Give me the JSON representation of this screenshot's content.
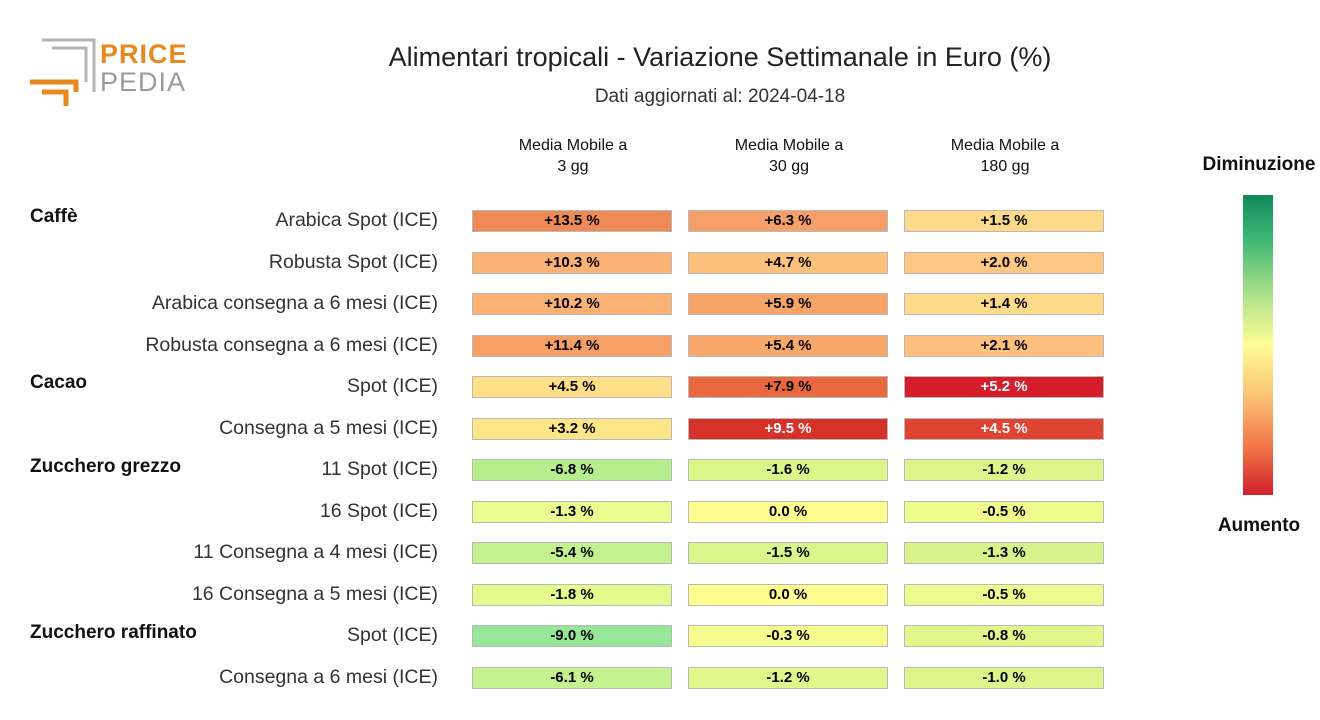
{
  "logo": {
    "line1": "PRICE",
    "line2": "PEDIA",
    "orange": "#e8891f",
    "grey": "#a5a5a5"
  },
  "title": "Alimentari tropicali - Variazione Settimanale in Euro (%)",
  "subtitle": "Dati aggiornati al: 2024-04-18",
  "columns": [
    {
      "line1": "Media Mobile a",
      "line2": "3 gg"
    },
    {
      "line1": "Media Mobile a",
      "line2": "30 gg"
    },
    {
      "line1": "Media Mobile a",
      "line2": "180 gg"
    }
  ],
  "groups": [
    "Caffè",
    "Cacao",
    "Zucchero grezzo",
    "Zucchero raffinato"
  ],
  "rows": [
    {
      "label": "Arabica Spot (ICE)",
      "values": [
        "+13.5 %",
        "+6.3 %",
        "+1.5 %"
      ]
    },
    {
      "label": "Robusta Spot (ICE)",
      "values": [
        "+10.3 %",
        "+4.7 %",
        "+2.0 %"
      ]
    },
    {
      "label": "Arabica consegna a 6 mesi (ICE)",
      "values": [
        "+10.2 %",
        "+5.9 %",
        "+1.4 %"
      ]
    },
    {
      "label": "Robusta consegna a 6 mesi (ICE)",
      "values": [
        "+11.4 %",
        "+5.4 %",
        "+2.1 %"
      ]
    },
    {
      "label": "Spot (ICE)",
      "values": [
        "+4.5 %",
        "+7.9 %",
        "+5.2 %"
      ]
    },
    {
      "label": "Consegna a 5 mesi (ICE)",
      "values": [
        "+3.2 %",
        "+9.5 %",
        "+4.5 %"
      ]
    },
    {
      "label": "11 Spot (ICE)",
      "values": [
        "-6.8 %",
        "-1.6 %",
        "-1.2 %"
      ]
    },
    {
      "label": "16 Spot (ICE)",
      "values": [
        "-1.3 %",
        "0.0 %",
        "-0.5 %"
      ]
    },
    {
      "label": "11 Consegna a 4 mesi (ICE)",
      "values": [
        "-5.4 %",
        "-1.5 %",
        "-1.3 %"
      ]
    },
    {
      "label": "16 Consegna a 5 mesi (ICE)",
      "values": [
        "-1.8 %",
        "0.0 %",
        "-0.5 %"
      ]
    },
    {
      "label": "Spot (ICE)",
      "values": [
        "-9.0 %",
        "-0.3 %",
        "-0.8 %"
      ]
    },
    {
      "label": "Consegna a 6 mesi (ICE)",
      "values": [
        "-6.1 %",
        "-1.2 %",
        "-1.0 %"
      ]
    }
  ],
  "cell_colors": [
    [
      "#ee8a55",
      "#f5a06a",
      "#fdd98a"
    ],
    [
      "#fbb274",
      "#fdc17c",
      "#fdc783"
    ],
    [
      "#fbb173",
      "#f7a468",
      "#fedb8a"
    ],
    [
      "#f6a065",
      "#f8a86b",
      "#fdc07e"
    ],
    [
      "#fedf87",
      "#e9683e",
      "#d51d2c"
    ],
    [
      "#fde688",
      "#d73229",
      "#df4331"
    ],
    [
      "#b7ee8e",
      "#dbf78a",
      "#dcf68c"
    ],
    [
      "#ecfc90",
      "#fefd90",
      "#eefb8c"
    ],
    [
      "#c3f18e",
      "#d9f68a",
      "#d8f38c"
    ],
    [
      "#e6fb8d",
      "#fefd90",
      "#edfa8d"
    ],
    [
      "#97e79a",
      "#f7fd8e",
      "#e2f68c"
    ],
    [
      "#c3f28f",
      "#e0f88b",
      "#dcf68c"
    ]
  ],
  "cell_text_colors": [
    [
      "#000000",
      "#000000",
      "#000000"
    ],
    [
      "#000000",
      "#000000",
      "#000000"
    ],
    [
      "#000000",
      "#000000",
      "#000000"
    ],
    [
      "#000000",
      "#000000",
      "#000000"
    ],
    [
      "#000000",
      "#000000",
      "#ffffff"
    ],
    [
      "#000000",
      "#ffffff",
      "#ffffff"
    ],
    [
      "#000000",
      "#000000",
      "#000000"
    ],
    [
      "#000000",
      "#000000",
      "#000000"
    ],
    [
      "#000000",
      "#000000",
      "#000000"
    ],
    [
      "#000000",
      "#000000",
      "#000000"
    ],
    [
      "#000000",
      "#000000",
      "#000000"
    ],
    [
      "#000000",
      "#000000",
      "#000000"
    ]
  ],
  "legend": {
    "top": "Diminuzione",
    "bottom": "Aumento",
    "colors": [
      "#11875a",
      "#b6e58c",
      "#fdfd95",
      "#fbbf72",
      "#d21f2a"
    ]
  },
  "chart_data": {
    "type": "heatmap",
    "title": "Alimentari tropicali - Variazione Settimanale in Euro (%)",
    "subtitle": "Dati aggiornati al: 2024-04-18",
    "columns": [
      "Media Mobile a 3 gg",
      "Media Mobile a 30 gg",
      "Media Mobile a 180 gg"
    ],
    "rows": [
      {
        "group": "Caffè",
        "label": "Arabica Spot (ICE)",
        "values": [
          13.5,
          6.3,
          1.5
        ]
      },
      {
        "group": "Caffè",
        "label": "Robusta Spot (ICE)",
        "values": [
          10.3,
          4.7,
          2.0
        ]
      },
      {
        "group": "Caffè",
        "label": "Arabica consegna a 6 mesi (ICE)",
        "values": [
          10.2,
          5.9,
          1.4
        ]
      },
      {
        "group": "Caffè",
        "label": "Robusta consegna a 6 mesi (ICE)",
        "values": [
          11.4,
          5.4,
          2.1
        ]
      },
      {
        "group": "Cacao",
        "label": "Spot (ICE)",
        "values": [
          4.5,
          7.9,
          5.2
        ]
      },
      {
        "group": "Cacao",
        "label": "Consegna a 5 mesi (ICE)",
        "values": [
          3.2,
          9.5,
          4.5
        ]
      },
      {
        "group": "Zucchero grezzo",
        "label": "11 Spot (ICE)",
        "values": [
          -6.8,
          -1.6,
          -1.2
        ]
      },
      {
        "group": "Zucchero grezzo",
        "label": "16 Spot (ICE)",
        "values": [
          -1.3,
          0.0,
          -0.5
        ]
      },
      {
        "group": "Zucchero grezzo",
        "label": "11 Consegna a 4 mesi (ICE)",
        "values": [
          -5.4,
          -1.5,
          -1.3
        ]
      },
      {
        "group": "Zucchero grezzo",
        "label": "16 Consegna a 5 mesi (ICE)",
        "values": [
          -1.8,
          0.0,
          -0.5
        ]
      },
      {
        "group": "Zucchero raffinato",
        "label": "Spot (ICE)",
        "values": [
          -9.0,
          -0.3,
          -0.8
        ]
      },
      {
        "group": "Zucchero raffinato",
        "label": "Consegna a 6 mesi (ICE)",
        "values": [
          -6.1,
          -1.2,
          -1.0
        ]
      }
    ],
    "legend": {
      "top": "Diminuzione",
      "bottom": "Aumento"
    },
    "grid": false
  }
}
